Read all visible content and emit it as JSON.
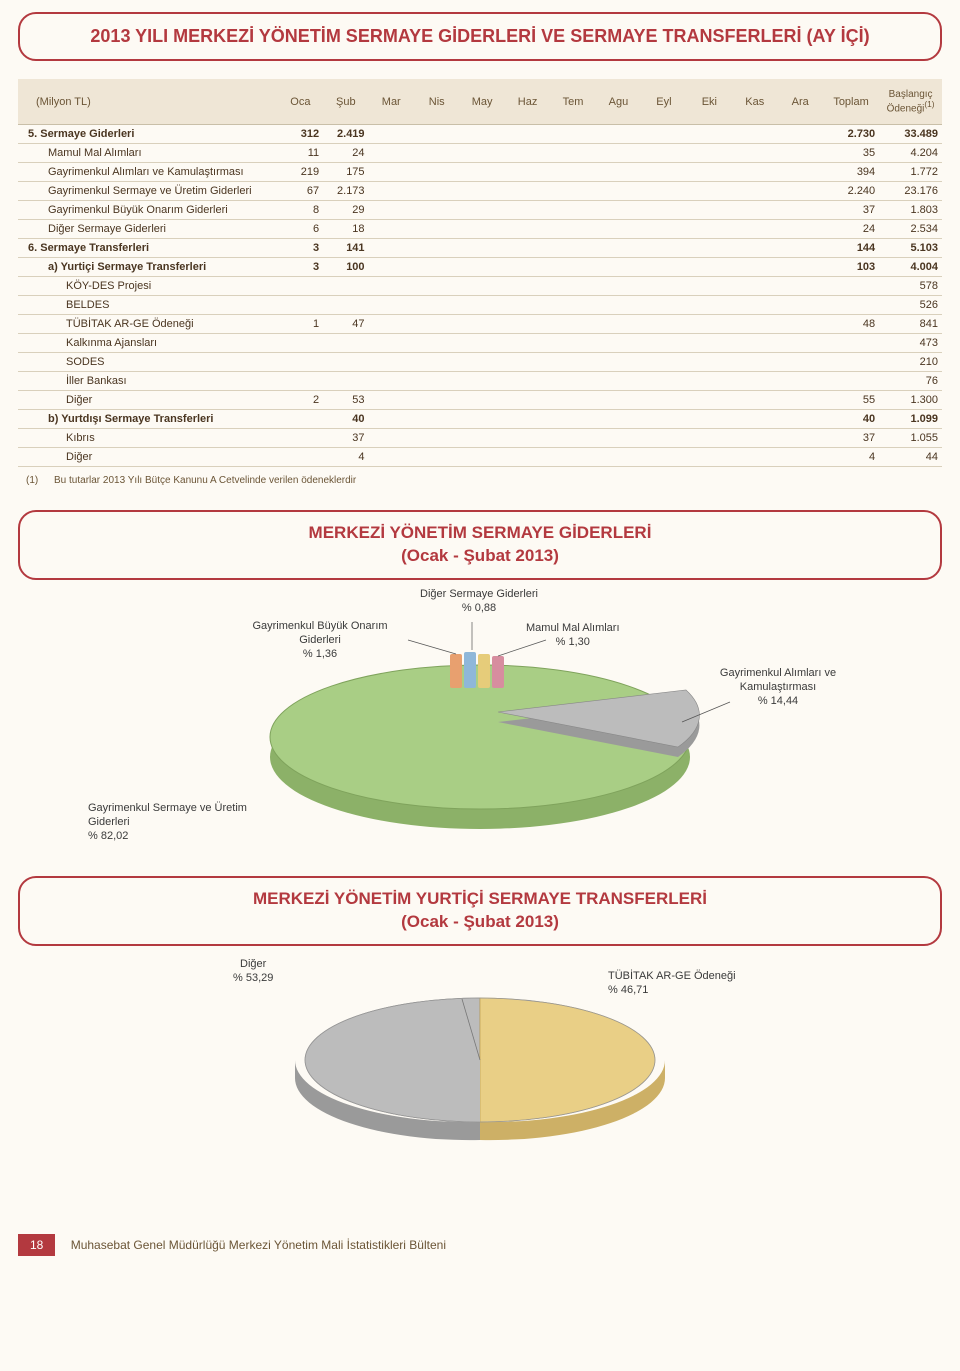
{
  "title": "2013 YILI MERKEZİ YÖNETİM SERMAYE GİDERLERİ VE SERMAYE TRANSFERLERİ (AY İÇİ)",
  "table": {
    "unit_label": "(Milyon TL)",
    "last_col_label": "Başlangıç Ödeneği",
    "last_col_sup": "(1)",
    "months": [
      "Oca",
      "Şub",
      "Mar",
      "Nis",
      "May",
      "Haz",
      "Tem",
      "Agu",
      "Eyl",
      "Eki",
      "Kas",
      "Ara",
      "Toplam"
    ],
    "rows": [
      {
        "cls": "section",
        "label": "5. Sermaye Giderleri",
        "cells": [
          "312",
          "2.419",
          "",
          "",
          "",
          "",
          "",
          "",
          "",
          "",
          "",
          "",
          "2.730",
          "33.489"
        ]
      },
      {
        "cls": "item",
        "label": "Mamul Mal Alımları",
        "cells": [
          "11",
          "24",
          "",
          "",
          "",
          "",
          "",
          "",
          "",
          "",
          "",
          "",
          "35",
          "4.204"
        ]
      },
      {
        "cls": "item",
        "label": "Gayrimenkul Alımları ve Kamulaştırması",
        "cells": [
          "219",
          "175",
          "",
          "",
          "",
          "",
          "",
          "",
          "",
          "",
          "",
          "",
          "394",
          "1.772"
        ]
      },
      {
        "cls": "item",
        "label": "Gayrimenkul Sermaye ve Üretim Giderleri",
        "cells": [
          "67",
          "2.173",
          "",
          "",
          "",
          "",
          "",
          "",
          "",
          "",
          "",
          "",
          "2.240",
          "23.176"
        ]
      },
      {
        "cls": "item",
        "label": "Gayrimenkul Büyük Onarım Giderleri",
        "cells": [
          "8",
          "29",
          "",
          "",
          "",
          "",
          "",
          "",
          "",
          "",
          "",
          "",
          "37",
          "1.803"
        ]
      },
      {
        "cls": "item",
        "label": "Diğer Sermaye Giderleri",
        "cells": [
          "6",
          "18",
          "",
          "",
          "",
          "",
          "",
          "",
          "",
          "",
          "",
          "",
          "24",
          "2.534"
        ]
      },
      {
        "cls": "section",
        "label": "6. Sermaye Transferleri",
        "cells": [
          "3",
          "141",
          "",
          "",
          "",
          "",
          "",
          "",
          "",
          "",
          "",
          "",
          "144",
          "5.103"
        ]
      },
      {
        "cls": "subsection",
        "label": "a) Yurtiçi Sermaye Transferleri",
        "cells": [
          "3",
          "100",
          "",
          "",
          "",
          "",
          "",
          "",
          "",
          "",
          "",
          "",
          "103",
          "4.004"
        ]
      },
      {
        "cls": "subitem",
        "label": "KÖY-DES Projesi",
        "cells": [
          "",
          "",
          "",
          "",
          "",
          "",
          "",
          "",
          "",
          "",
          "",
          "",
          "",
          "578"
        ]
      },
      {
        "cls": "subitem",
        "label": "BELDES",
        "cells": [
          "",
          "",
          "",
          "",
          "",
          "",
          "",
          "",
          "",
          "",
          "",
          "",
          "",
          "526"
        ]
      },
      {
        "cls": "subitem",
        "label": "TÜBİTAK AR-GE Ödeneği",
        "cells": [
          "1",
          "47",
          "",
          "",
          "",
          "",
          "",
          "",
          "",
          "",
          "",
          "",
          "48",
          "841"
        ]
      },
      {
        "cls": "subitem",
        "label": "Kalkınma Ajansları",
        "cells": [
          "",
          "",
          "",
          "",
          "",
          "",
          "",
          "",
          "",
          "",
          "",
          "",
          "",
          "473"
        ]
      },
      {
        "cls": "subitem",
        "label": "SODES",
        "cells": [
          "",
          "",
          "",
          "",
          "",
          "",
          "",
          "",
          "",
          "",
          "",
          "",
          "",
          "210"
        ]
      },
      {
        "cls": "subitem",
        "label": "İller Bankası",
        "cells": [
          "",
          "",
          "",
          "",
          "",
          "",
          "",
          "",
          "",
          "",
          "",
          "",
          "",
          "76"
        ]
      },
      {
        "cls": "subitem",
        "label": "Diğer",
        "cells": [
          "2",
          "53",
          "",
          "",
          "",
          "",
          "",
          "",
          "",
          "",
          "",
          "",
          "55",
          "1.300"
        ]
      },
      {
        "cls": "subsection",
        "label": "b) Yurtdışı Sermaye Transferleri",
        "cells": [
          "",
          "40",
          "",
          "",
          "",
          "",
          "",
          "",
          "",
          "",
          "",
          "",
          "40",
          "1.099"
        ]
      },
      {
        "cls": "subitem",
        "label": "Kıbrıs",
        "cells": [
          "",
          "37",
          "",
          "",
          "",
          "",
          "",
          "",
          "",
          "",
          "",
          "",
          "37",
          "1.055"
        ]
      },
      {
        "cls": "subitem",
        "label": "Diğer",
        "cells": [
          "",
          "4",
          "",
          "",
          "",
          "",
          "",
          "",
          "",
          "",
          "",
          "",
          "4",
          "44"
        ]
      }
    ],
    "footnote_num": "(1)",
    "footnote_text": "Bu tutarlar 2013 Yılı Bütçe Kanunu A Cetvelinde verilen ödeneklerdir"
  },
  "chart1": {
    "title_line1": "MERKEZİ YÖNETİM SERMAYE GİDERLERİ",
    "title_line2": "(Ocak - Şubat 2013)",
    "big_slice_color": "#a9ce85",
    "big_slice_side": "#8cb168",
    "wedge_color": "#bcbcbc",
    "wedge_side": "#9a9a9a",
    "tiny_colors": [
      "#e8a06f",
      "#8fb7d9",
      "#e6cc7a",
      "#d78d9f"
    ],
    "labels": {
      "diger": {
        "t": "Diğer Sermaye Giderleri",
        "p": "% 0,88"
      },
      "buyuk": {
        "t": "Gayrimenkul Büyük Onarım Giderleri",
        "p": "% 1,36"
      },
      "mamul": {
        "t": "Mamul Mal Alımları",
        "p": "% 1,30"
      },
      "alim": {
        "t": "Gayrimenkul Alımları ve Kamulaştırması",
        "p": "% 14,44"
      },
      "uretim": {
        "t": "Gayrimenkul Sermaye ve Üretim Giderleri",
        "p": "% 82,02"
      }
    }
  },
  "chart2": {
    "title_line1": "MERKEZİ YÖNETİM YURTİÇİ SERMAYE TRANSFERLERİ",
    "title_line2": "(Ocak - Şubat 2013)",
    "left_color": "#bcbcbc",
    "left_side": "#9a9a9a",
    "right_color": "#e9cf86",
    "right_side": "#cdb066",
    "labels": {
      "diger": {
        "t": "Diğer",
        "p": "% 53,29"
      },
      "tubitak": {
        "t": "TÜBİTAK AR-GE Ödeneği",
        "p": "% 46,71"
      }
    }
  },
  "footer": {
    "page": "18",
    "text": "Muhasebat Genel Müdürlüğü Merkezi Yönetim Mali İstatistikleri Bülteni"
  }
}
